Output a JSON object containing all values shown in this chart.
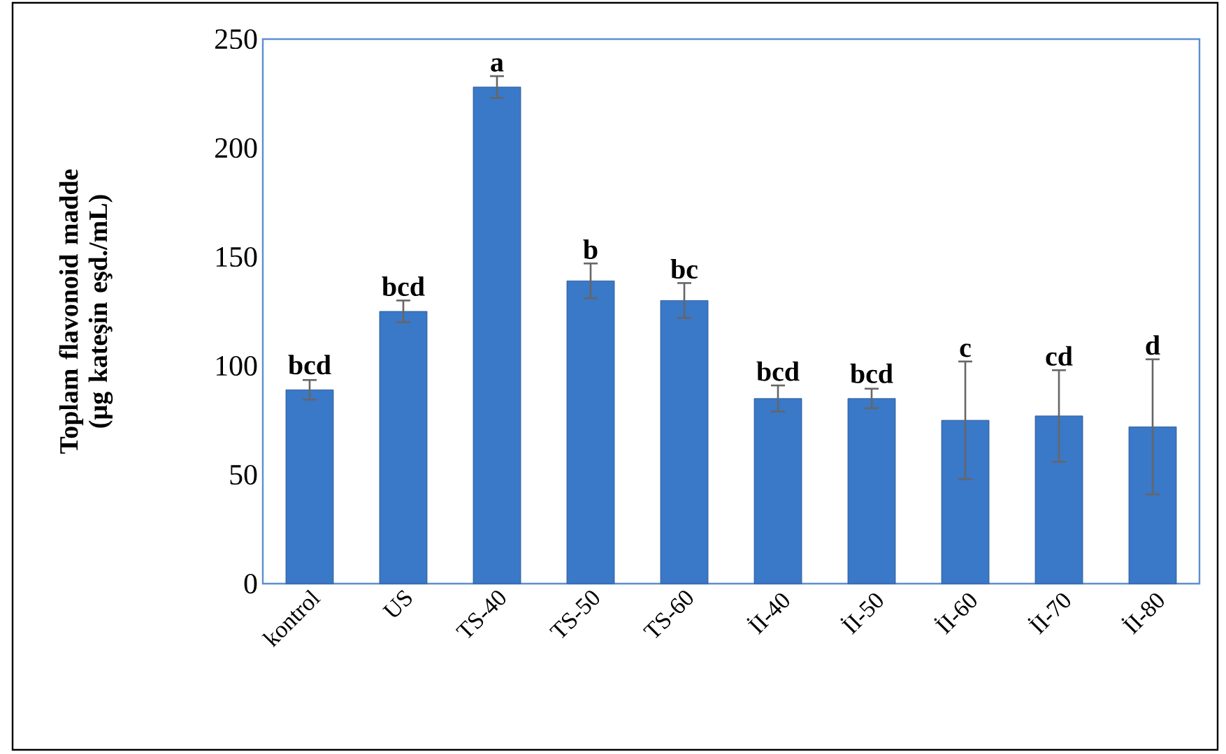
{
  "chart_data": {
    "type": "bar",
    "ylabel": "Toplam flavonoid madde (µg kateşin eşd./mL)",
    "categories": [
      "kontrol",
      "US",
      "TS-40",
      "TS-50",
      "TS-60",
      "İI-40",
      "İI-50",
      "İI-60",
      "İI-70",
      "İI-80"
    ],
    "values": [
      89,
      125,
      228,
      139,
      130,
      85,
      85,
      75,
      77,
      72
    ],
    "errors": [
      4.5,
      5,
      5,
      8,
      8,
      6,
      4.5,
      27,
      21,
      31
    ],
    "color": "#3a78c8",
    "ylim": [
      0,
      250
    ],
    "yticks": [
      0,
      50,
      100,
      150,
      200,
      250
    ],
    "grid": false,
    "annotations": [
      {
        "text": "bcd",
        "x": "kontrol",
        "y": 94
      },
      {
        "text": "bcd",
        "x": "US",
        "y": 130
      },
      {
        "text": "a",
        "x": "TS-40",
        "y": 233
      },
      {
        "text": "b",
        "x": "TS-50",
        "y": 147
      },
      {
        "text": "bc",
        "x": "TS-60",
        "y": 138
      },
      {
        "text": "bcd",
        "x": "İI-40",
        "y": 91
      },
      {
        "text": "bcd",
        "x": "İI-50",
        "y": 90
      },
      {
        "text": "c",
        "x": "İI-60",
        "y": 102
      },
      {
        "text": "cd",
        "x": "İI-70",
        "y": 98
      },
      {
        "text": "d",
        "x": "İI-80",
        "y": 103
      }
    ]
  }
}
